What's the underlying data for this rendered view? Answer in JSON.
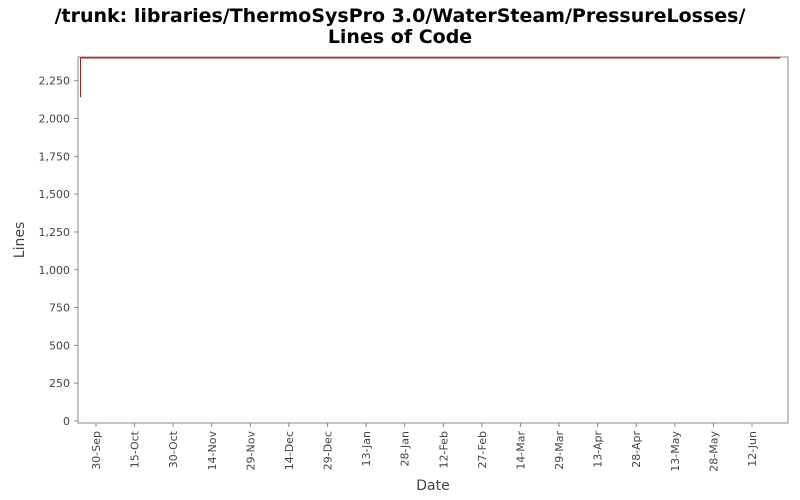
{
  "chart_data": {
    "type": "line",
    "title_line1": "/trunk: libraries/ThermoSysPro 3.0/WaterSteam/PressureLosses/",
    "title_line2": "Lines of Code",
    "xlabel": "Date",
    "ylabel": "Lines",
    "ylim": [
      0,
      2400
    ],
    "yticks": [
      {
        "value": 0,
        "label": "0"
      },
      {
        "value": 250,
        "label": "250"
      },
      {
        "value": 500,
        "label": "500"
      },
      {
        "value": 750,
        "label": "750"
      },
      {
        "value": 1000,
        "label": "1,000"
      },
      {
        "value": 1250,
        "label": "1,250"
      },
      {
        "value": 1500,
        "label": "1,500"
      },
      {
        "value": 1750,
        "label": "1,750"
      },
      {
        "value": 2000,
        "label": "2,000"
      },
      {
        "value": 2250,
        "label": "2,250"
      }
    ],
    "xlim": [
      "2012-09-23",
      "2013-06-26"
    ],
    "xticks": [
      {
        "date": "2012-09-30",
        "label": "30-Sep"
      },
      {
        "date": "2012-10-15",
        "label": "15-Oct"
      },
      {
        "date": "2012-10-30",
        "label": "30-Oct"
      },
      {
        "date": "2012-11-14",
        "label": "14-Nov"
      },
      {
        "date": "2012-11-29",
        "label": "29-Nov"
      },
      {
        "date": "2012-12-14",
        "label": "14-Dec"
      },
      {
        "date": "2012-12-29",
        "label": "29-Dec"
      },
      {
        "date": "2013-01-13",
        "label": "13-Jan"
      },
      {
        "date": "2013-01-28",
        "label": "28-Jan"
      },
      {
        "date": "2013-02-12",
        "label": "12-Feb"
      },
      {
        "date": "2013-02-27",
        "label": "27-Feb"
      },
      {
        "date": "2013-03-14",
        "label": "14-Mar"
      },
      {
        "date": "2013-03-29",
        "label": "29-Mar"
      },
      {
        "date": "2013-04-13",
        "label": "13-Apr"
      },
      {
        "date": "2013-04-28",
        "label": "28-Apr"
      },
      {
        "date": "2013-05-13",
        "label": "13-May"
      },
      {
        "date": "2013-05-28",
        "label": "28-May"
      },
      {
        "date": "2013-06-12",
        "label": "12-Jun"
      }
    ],
    "series": [
      {
        "color": "#aa0000",
        "points": [
          {
            "x": "2012-09-24",
            "y": 2140
          },
          {
            "x": "2012-09-24",
            "y": 2400
          },
          {
            "x": "2013-06-23",
            "y": 2400
          }
        ]
      }
    ],
    "grid": false,
    "legend": "none"
  }
}
